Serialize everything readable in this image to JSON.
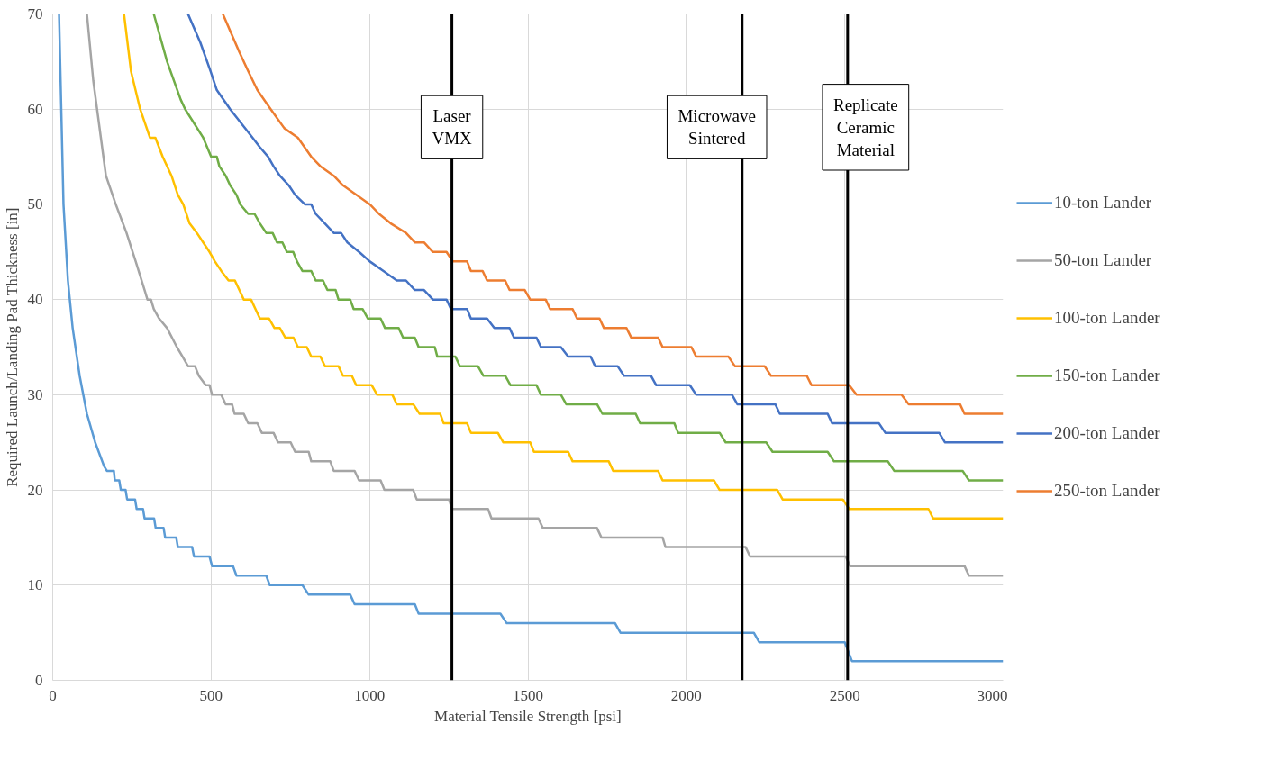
{
  "chart_data": {
    "type": "line",
    "xlabel": "Material Tensile Strength [psi]",
    "ylabel": "Required Launch/Landing Pad Thickness [in]",
    "xlim": [
      0,
      3000
    ],
    "ylim": [
      0,
      70
    ],
    "xticks": [
      0,
      500,
      1000,
      1500,
      2000,
      2500,
      3000
    ],
    "yticks": [
      0,
      10,
      20,
      30,
      40,
      50,
      60,
      70
    ],
    "grid": true,
    "legend": "right",
    "marker": "none",
    "line_style": "solid",
    "series": [
      {
        "name": "10-ton Lander",
        "color": "#5b9bd5",
        "x": [
          20,
          34,
          48,
          63,
          85,
          108,
          134,
          162,
          171,
          193,
          196,
          210,
          215,
          230,
          235,
          260,
          265,
          285,
          290,
          320,
          325,
          350,
          355,
          390,
          395,
          440,
          446,
          495,
          503,
          569,
          580,
          674,
          685,
          788,
          808,
          939,
          953,
          1143,
          1155,
          1413,
          1433,
          1775,
          1792,
          2213,
          2230,
          2500,
          2523,
          3000
        ],
        "values": [
          70,
          50,
          42,
          37,
          32,
          28,
          25,
          22.5,
          22,
          22,
          21,
          21,
          20,
          20,
          19,
          19,
          18,
          18,
          17,
          17,
          16,
          16,
          15,
          15,
          14,
          14,
          13,
          13,
          12,
          12,
          11,
          11,
          10,
          10,
          9,
          9,
          8,
          8,
          7,
          7,
          6,
          6,
          5,
          5,
          4,
          4,
          2,
          2
        ]
      },
      {
        "name": "50-ton Lander",
        "color": "#a5a5a5",
        "x": [
          108,
          128,
          168,
          199,
          233,
          262,
          290,
          299,
          310,
          319,
          336,
          361,
          392,
          410,
          427,
          449,
          461,
          483,
          495,
          503,
          532,
          546,
          566,
          574,
          603,
          617,
          646,
          660,
          697,
          711,
          751,
          765,
          808,
          816,
          876,
          887,
          953,
          967,
          1035,
          1047,
          1138,
          1149,
          1251,
          1260,
          1374,
          1385,
          1533,
          1547,
          1718,
          1732,
          1925,
          1934,
          2187,
          2201,
          2503,
          2517,
          2878,
          2892,
          3000
        ],
        "values": [
          70,
          63,
          53,
          50,
          47,
          44,
          41,
          40,
          40,
          39,
          38,
          37,
          35,
          34,
          33,
          33,
          32,
          31,
          31,
          30,
          30,
          29,
          29,
          28,
          28,
          27,
          27,
          26,
          26,
          25,
          25,
          24,
          24,
          23,
          23,
          22,
          22,
          21,
          21,
          20,
          20,
          19,
          19,
          18,
          18,
          17,
          17,
          16,
          16,
          15,
          15,
          14,
          14,
          13,
          13,
          12,
          12,
          11,
          11
        ]
      },
      {
        "name": "100-ton Lander",
        "color": "#ffc000",
        "x": [
          225,
          247,
          276,
          307,
          324,
          347,
          375,
          395,
          412,
          432,
          455,
          475,
          495,
          512,
          532,
          555,
          575,
          589,
          603,
          626,
          640,
          654,
          683,
          700,
          717,
          734,
          760,
          774,
          802,
          816,
          845,
          859,
          902,
          916,
          944,
          958,
          1007,
          1024,
          1072,
          1086,
          1138,
          1158,
          1223,
          1234,
          1308,
          1320,
          1405,
          1422,
          1507,
          1519,
          1627,
          1641,
          1755,
          1769,
          1911,
          1925,
          2087,
          2105,
          2287,
          2304,
          2494,
          2514,
          2764,
          2779,
          3000
        ],
        "values": [
          70,
          64,
          60,
          57,
          57,
          55,
          53,
          51,
          50,
          48,
          47,
          46,
          45,
          44,
          43,
          42,
          42,
          41,
          40,
          40,
          39,
          38,
          38,
          37,
          37,
          36,
          36,
          35,
          35,
          34,
          34,
          33,
          33,
          32,
          32,
          31,
          31,
          30,
          30,
          29,
          29,
          28,
          28,
          27,
          27,
          26,
          26,
          25,
          25,
          24,
          24,
          23,
          23,
          22,
          22,
          21,
          21,
          20,
          20,
          19,
          19,
          18,
          18,
          17,
          17
        ]
      },
      {
        "name": "150-ton Lander",
        "color": "#70ad47",
        "x": [
          319,
          361,
          404,
          418,
          475,
          500,
          518,
          526,
          546,
          560,
          580,
          592,
          617,
          637,
          654,
          674,
          694,
          708,
          725,
          739,
          759,
          771,
          788,
          816,
          830,
          853,
          867,
          893,
          902,
          939,
          950,
          978,
          995,
          1035,
          1049,
          1092,
          1106,
          1143,
          1155,
          1206,
          1214,
          1271,
          1285,
          1342,
          1359,
          1428,
          1445,
          1527,
          1541,
          1604,
          1621,
          1718,
          1735,
          1840,
          1854,
          1962,
          1974,
          2105,
          2124,
          2252,
          2272,
          2446,
          2466,
          2636,
          2656,
          2872,
          2892,
          3000
        ],
        "values": [
          70,
          65,
          61,
          60,
          57,
          55,
          55,
          54,
          53,
          52,
          51,
          50,
          49,
          49,
          48,
          47,
          47,
          46,
          46,
          45,
          45,
          44,
          43,
          43,
          42,
          42,
          41,
          41,
          40,
          40,
          39,
          39,
          38,
          38,
          37,
          37,
          36,
          36,
          35,
          35,
          34,
          34,
          33,
          33,
          32,
          32,
          31,
          31,
          30,
          30,
          29,
          29,
          28,
          28,
          27,
          27,
          26,
          26,
          25,
          25,
          24,
          24,
          23,
          23,
          22,
          22,
          21,
          21
        ]
      },
      {
        "name": "200-ton Lander",
        "color": "#4472c4",
        "x": [
          427,
          466,
          498,
          518,
          560,
          631,
          654,
          680,
          697,
          717,
          745,
          765,
          796,
          816,
          830,
          859,
          887,
          910,
          930,
          967,
          1001,
          1044,
          1086,
          1115,
          1143,
          1172,
          1200,
          1243,
          1257,
          1308,
          1320,
          1371,
          1394,
          1442,
          1456,
          1527,
          1541,
          1604,
          1627,
          1698,
          1712,
          1783,
          1803,
          1888,
          1905,
          2011,
          2031,
          2144,
          2161,
          2281,
          2295,
          2446,
          2460,
          2608,
          2628,
          2798,
          2816,
          3000
        ],
        "values": [
          70,
          67,
          64,
          62,
          60,
          57,
          56,
          55,
          54,
          53,
          52,
          51,
          50,
          50,
          49,
          48,
          47,
          47,
          46,
          45,
          44,
          43,
          42,
          42,
          41,
          41,
          40,
          40,
          39,
          39,
          38,
          38,
          37,
          37,
          36,
          36,
          35,
          35,
          34,
          34,
          33,
          33,
          32,
          32,
          31,
          31,
          30,
          30,
          29,
          29,
          28,
          28,
          27,
          27,
          26,
          26,
          25,
          25
        ]
      },
      {
        "name": "250-ton Lander",
        "color": "#ed7d31",
        "x": [
          537,
          589,
          617,
          646,
          688,
          731,
          774,
          816,
          845,
          887,
          916,
          958,
          1001,
          1030,
          1067,
          1115,
          1143,
          1172,
          1200,
          1243,
          1263,
          1308,
          1320,
          1357,
          1371,
          1428,
          1442,
          1490,
          1507,
          1556,
          1570,
          1641,
          1655,
          1726,
          1740,
          1811,
          1826,
          1911,
          1925,
          2016,
          2031,
          2133,
          2153,
          2247,
          2267,
          2380,
          2395,
          2514,
          2537,
          2679,
          2702,
          2864,
          2878,
          3000
        ],
        "values": [
          70,
          66,
          64,
          62,
          60,
          58,
          57,
          55,
          54,
          53,
          52,
          51,
          50,
          49,
          48,
          47,
          46,
          46,
          45,
          45,
          44,
          44,
          43,
          43,
          42,
          42,
          41,
          41,
          40,
          40,
          39,
          39,
          38,
          38,
          37,
          37,
          36,
          36,
          35,
          35,
          34,
          34,
          33,
          33,
          32,
          32,
          31,
          31,
          30,
          30,
          29,
          29,
          28,
          28
        ]
      }
    ],
    "ref_lines": [
      {
        "axis": "x",
        "value": 1260,
        "label": "Laser\nVMX",
        "color": "#000000"
      },
      {
        "axis": "x",
        "value": 2176,
        "label": "Microwave\nSintered",
        "color": "#000000"
      },
      {
        "axis": "x",
        "value": 2509,
        "label": "Replicate\nCeramic\nMaterial",
        "color": "#000000"
      }
    ]
  }
}
